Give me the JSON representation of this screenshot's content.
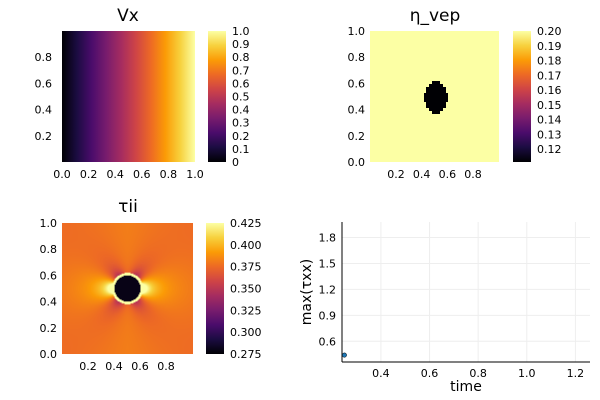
{
  "colors": {
    "inferno": [
      "#000004",
      "#1b0c41",
      "#4a0c6b",
      "#781c6d",
      "#a52c60",
      "#cf4446",
      "#ed6925",
      "#fb9b06",
      "#f7d13d",
      "#fcffa4"
    ],
    "scatter_marker": "#1f77b4",
    "frame": "#000000",
    "grid": "#eeeeee"
  },
  "chart_data": [
    {
      "type": "heatmap",
      "title": "Vx",
      "field": "linear ramp in x",
      "x_range": [
        0.0,
        1.0
      ],
      "y_range": [
        0.0,
        1.0
      ],
      "x_ticks": [
        "0.0",
        "0.2",
        "0.4",
        "0.6",
        "0.8",
        "1.0"
      ],
      "y_ticks": [
        "0.2",
        "0.4",
        "0.6",
        "0.8"
      ],
      "colorbar": {
        "min": 0.0,
        "max": 1.0,
        "ticks": [
          "0",
          "0.1",
          "0.2",
          "0.3",
          "0.4",
          "0.5",
          "0.6",
          "0.7",
          "0.8",
          "0.9",
          "1.0"
        ]
      }
    },
    {
      "type": "heatmap",
      "title": "η_vep",
      "field": "uniform background with circular inclusion",
      "background_value": 0.2,
      "inclusion_value": 0.11,
      "inclusion_center": [
        0.5,
        0.5
      ],
      "inclusion_radius": 0.1,
      "x_ticks": [
        "0.2",
        "0.4",
        "0.6",
        "0.8"
      ],
      "y_ticks": [
        "0.0",
        "0.2",
        "0.4",
        "0.6",
        "0.8",
        "1.0"
      ],
      "colorbar": {
        "min": 0.11,
        "max": 0.2,
        "ticks": [
          "0.12",
          "0.13",
          "0.14",
          "0.15",
          "0.16",
          "0.17",
          "0.18",
          "0.19",
          "0.20"
        ]
      }
    },
    {
      "type": "heatmap",
      "title": "τii",
      "field": "stress concentration around circular inclusion",
      "background_value": 0.375,
      "inclusion_value": 0.275,
      "inclusion_center": [
        0.5,
        0.5
      ],
      "inclusion_radius": 0.1,
      "x_ticks": [
        "0.2",
        "0.4",
        "0.6",
        "0.8"
      ],
      "y_ticks": [
        "0.0",
        "0.2",
        "0.4",
        "0.6",
        "0.8",
        "1.0"
      ],
      "colorbar": {
        "min": 0.27,
        "max": 0.425,
        "ticks": [
          "0.275",
          "0.300",
          "0.325",
          "0.350",
          "0.375",
          "0.400",
          "0.425"
        ]
      }
    },
    {
      "type": "scatter",
      "title": "",
      "xlabel": "time",
      "ylabel": "max(τxx)",
      "xlim": [
        0.24,
        1.26
      ],
      "ylim": [
        0.36,
        1.98
      ],
      "x_ticks": [
        0.4,
        0.6,
        0.8,
        1.0,
        1.2
      ],
      "y_ticks": [
        0.6,
        0.9,
        1.2,
        1.5,
        1.8
      ],
      "x_tick_labels": [
        "0.4",
        "0.6",
        "0.8",
        "1.0",
        "1.2"
      ],
      "y_tick_labels": [
        "0.6",
        "0.9",
        "1.2",
        "1.5",
        "1.8"
      ],
      "grid": true,
      "points": [
        {
          "x": 0.25,
          "y": 0.44
        }
      ]
    }
  ]
}
